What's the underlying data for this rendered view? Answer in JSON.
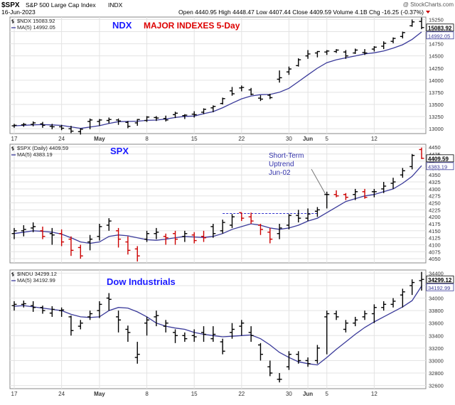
{
  "header": {
    "symbol_title": "$SPX",
    "name": "S&P 500 Large Cap Index",
    "exchange": "INDX",
    "watermark": "@ StockCharts.com",
    "date": "16-Jun-2023",
    "quote": "Open 4440.95  High 4448.47  Low 4407.44  Close 4409.59  Volume 4.1B  Chg -16.25 (-0.37%)"
  },
  "colors": {
    "bar_up": "#000000",
    "bar_down": "#cc0000",
    "moving_average": "#3a3a9a",
    "panel_title": "#1a1aff",
    "overlay_title": "#dd0000",
    "callout": "#3333aa",
    "grid": "#e3e3e3",
    "price_tag_bg": "#ffffff"
  },
  "x_axis": {
    "tick_labels": [
      "17",
      "24",
      "May",
      "8",
      "15",
      "22",
      "30",
      "Jun",
      "5",
      "12"
    ],
    "tick_index": [
      0,
      5,
      9,
      14,
      19,
      24,
      29,
      31,
      33,
      38
    ]
  },
  "chart_data": [
    {
      "type": "ohlc",
      "panel_title": "NDX",
      "overlay_title": "MAJOR INDEXES 5-Day",
      "legend": [
        {
          "label": "$NDX 15083.92",
          "symbol": "bar"
        },
        {
          "label": "MA(5) 14992.05",
          "symbol": "line"
        }
      ],
      "ylim": [
        12900,
        15300
      ],
      "y_ticks": [
        13000,
        13250,
        13500,
        13750,
        14000,
        14250,
        14500,
        14750,
        15000,
        15250
      ],
      "last_price_label": "15083.92",
      "last_ma_label": "14992.05",
      "series": {
        "name": "$NDX",
        "ohlc": [
          [
            13060,
            13100,
            13020,
            13070
          ],
          [
            13080,
            13120,
            13040,
            13090
          ],
          [
            13090,
            13150,
            13050,
            13120
          ],
          [
            13100,
            13140,
            13020,
            13070
          ],
          [
            13050,
            13100,
            12990,
            13040
          ],
          [
            13040,
            13080,
            12970,
            13010
          ],
          [
            13000,
            13060,
            12910,
            12950
          ],
          [
            12940,
            13010,
            12880,
            12990
          ],
          [
            13150,
            13210,
            12990,
            13180
          ],
          [
            13150,
            13200,
            13060,
            13180
          ],
          [
            13170,
            13230,
            13110,
            13190
          ],
          [
            13180,
            13210,
            13080,
            13160
          ],
          [
            13130,
            13160,
            13010,
            13050
          ],
          [
            13120,
            13200,
            13060,
            13190
          ],
          [
            13170,
            13260,
            13140,
            13240
          ],
          [
            13230,
            13260,
            13160,
            13220
          ],
          [
            13210,
            13270,
            13150,
            13180
          ],
          [
            13290,
            13350,
            13220,
            13320
          ],
          [
            13270,
            13300,
            13200,
            13280
          ],
          [
            13300,
            13360,
            13230,
            13290
          ],
          [
            13340,
            13420,
            13300,
            13400
          ],
          [
            13430,
            13480,
            13340,
            13460
          ],
          [
            13520,
            13640,
            13500,
            13620
          ],
          [
            13780,
            13860,
            13680,
            13720
          ],
          [
            13840,
            13890,
            13770,
            13850
          ],
          [
            13800,
            13840,
            13690,
            13710
          ],
          [
            13630,
            13690,
            13570,
            13610
          ],
          [
            13690,
            13720,
            13610,
            13640
          ],
          [
            14020,
            14200,
            13950,
            14050
          ],
          [
            14170,
            14280,
            14110,
            14230
          ],
          [
            14300,
            14450,
            14280,
            14420
          ],
          [
            14500,
            14620,
            14440,
            14540
          ],
          [
            14560,
            14600,
            14470,
            14590
          ],
          [
            14580,
            14620,
            14520,
            14600
          ],
          [
            14590,
            14640,
            14560,
            14620
          ],
          [
            14580,
            14620,
            14440,
            14500
          ],
          [
            14560,
            14650,
            14540,
            14620
          ],
          [
            14570,
            14640,
            14520,
            14560
          ],
          [
            14640,
            14700,
            14590,
            14680
          ],
          [
            14700,
            14800,
            14640,
            14760
          ],
          [
            14800,
            14880,
            14760,
            14860
          ],
          [
            14900,
            15000,
            14860,
            14980
          ],
          [
            15120,
            15250,
            15100,
            15200
          ],
          [
            15210,
            15290,
            15050,
            15083.92
          ]
        ],
        "ma5": [
          13060,
          13070,
          13080,
          13085,
          13079,
          13068,
          13038,
          13008,
          13034,
          13062,
          13110,
          13146,
          13150,
          13154,
          13172,
          13178,
          13200,
          13230,
          13254,
          13262,
          13310,
          13352,
          13432,
          13526,
          13616,
          13674,
          13702,
          13706,
          13752,
          13832,
          13970,
          14110,
          14246,
          14360,
          14420,
          14460,
          14500,
          14540,
          14564,
          14600,
          14660,
          14730,
          14840,
          14992.05
        ]
      }
    },
    {
      "type": "ohlc",
      "panel_title": "SPX",
      "legend": [
        {
          "label": "$SPX (Daily) 4409.59",
          "symbol": "bar"
        },
        {
          "label": "MA(5) 4383.19",
          "symbol": "line"
        }
      ],
      "ylim": [
        4035,
        4460
      ],
      "y_ticks": [
        4050,
        4075,
        4100,
        4125,
        4150,
        4175,
        4200,
        4225,
        4250,
        4275,
        4300,
        4325,
        4350,
        4375,
        4400,
        4425,
        4450
      ],
      "last_price_label": "4409.59",
      "last_ma_label": "4383.19",
      "reference_level": 4212,
      "callout": {
        "lines": [
          "Short-Term",
          "Uptrend",
          "Jun-02"
        ]
      },
      "series": {
        "name": "$SPX",
        "ohlc": [
          [
            4140,
            4160,
            4120,
            4150
          ],
          [
            4150,
            4170,
            4130,
            4155
          ],
          [
            4160,
            4180,
            4145,
            4165
          ],
          [
            4150,
            4165,
            4120,
            4130
          ],
          [
            4140,
            4160,
            4100,
            4135
          ],
          [
            4140,
            4155,
            4095,
            4110
          ],
          [
            4120,
            4130,
            4060,
            4080
          ],
          [
            4090,
            4100,
            4050,
            4060
          ],
          [
            4110,
            4135,
            4080,
            4120
          ],
          [
            4130,
            4175,
            4115,
            4165
          ],
          [
            4170,
            4195,
            4150,
            4185
          ],
          [
            4150,
            4160,
            4090,
            4120
          ],
          [
            4110,
            4130,
            4065,
            4080
          ],
          [
            4085,
            4095,
            4040,
            4060
          ],
          [
            4120,
            4150,
            4110,
            4140
          ],
          [
            4140,
            4160,
            4120,
            4145
          ],
          [
            4130,
            4140,
            4100,
            4125
          ],
          [
            4140,
            4150,
            4100,
            4120
          ],
          [
            4130,
            4150,
            4110,
            4140
          ],
          [
            4135,
            4145,
            4105,
            4115
          ],
          [
            4130,
            4150,
            4110,
            4125
          ],
          [
            4165,
            4175,
            4125,
            4140
          ],
          [
            4150,
            4190,
            4140,
            4180
          ],
          [
            4170,
            4210,
            4160,
            4200
          ],
          [
            4215,
            4215,
            4185,
            4195
          ],
          [
            4200,
            4215,
            4175,
            4185
          ],
          [
            4170,
            4175,
            4135,
            4155
          ],
          [
            4145,
            4160,
            4105,
            4120
          ],
          [
            4140,
            4175,
            4120,
            4160
          ],
          [
            4170,
            4210,
            4155,
            4205
          ],
          [
            4205,
            4225,
            4180,
            4195
          ],
          [
            4195,
            4230,
            4185,
            4210
          ],
          [
            4220,
            4235,
            4200,
            4225
          ],
          [
            4280,
            4290,
            4230,
            4280
          ],
          [
            4280,
            4295,
            4270,
            4275
          ],
          [
            4280,
            4285,
            4260,
            4270
          ],
          [
            4280,
            4300,
            4260,
            4290
          ],
          [
            4290,
            4300,
            4265,
            4270
          ],
          [
            4290,
            4300,
            4270,
            4290
          ],
          [
            4300,
            4325,
            4285,
            4310
          ],
          [
            4320,
            4340,
            4300,
            4325
          ],
          [
            4350,
            4375,
            4340,
            4365
          ],
          [
            4380,
            4425,
            4370,
            4420
          ],
          [
            4441,
            4448,
            4407,
            4409.59
          ]
        ],
        "direction": [
          "up",
          "up",
          "up",
          "down",
          "up",
          "down",
          "down",
          "down",
          "up",
          "up",
          "up",
          "down",
          "down",
          "down",
          "up",
          "up",
          "down",
          "down",
          "up",
          "down",
          "down",
          "up",
          "up",
          "up",
          "down",
          "down",
          "down",
          "down",
          "up",
          "up",
          "up",
          "up",
          "up",
          "up",
          "down",
          "down",
          "up",
          "down",
          "up",
          "up",
          "up",
          "up",
          "up",
          "down"
        ],
        "ma5": [
          4140,
          4145,
          4150,
          4148,
          4145,
          4138,
          4125,
          4110,
          4105,
          4110,
          4130,
          4135,
          4132,
          4125,
          4118,
          4116,
          4120,
          4125,
          4130,
          4128,
          4126,
          4130,
          4140,
          4155,
          4165,
          4175,
          4170,
          4160,
          4155,
          4160,
          4170,
          4185,
          4195,
          4215,
          4235,
          4255,
          4265,
          4275,
          4280,
          4290,
          4300,
          4320,
          4345,
          4383.19
        ]
      }
    },
    {
      "type": "ohlc",
      "panel_title": "Dow Industrials",
      "legend": [
        {
          "label": "$INDU 34299.12",
          "symbol": "bar"
        },
        {
          "label": "MA(5) 34192.99",
          "symbol": "line"
        }
      ],
      "ylim": [
        32550,
        34450
      ],
      "y_ticks": [
        32600,
        32800,
        33000,
        33200,
        33400,
        33600,
        33800,
        34000,
        34200,
        34400
      ],
      "last_price_label": "34299.12",
      "last_ma_label": "34192.99",
      "series": {
        "name": "$INDU",
        "ohlc": [
          [
            33880,
            33950,
            33800,
            33900
          ],
          [
            33900,
            33960,
            33850,
            33910
          ],
          [
            33880,
            33950,
            33780,
            33850
          ],
          [
            33850,
            33880,
            33750,
            33800
          ],
          [
            33760,
            33870,
            33700,
            33820
          ],
          [
            33800,
            33850,
            33700,
            33810
          ],
          [
            33700,
            33720,
            33400,
            33480
          ],
          [
            33550,
            33650,
            33500,
            33600
          ],
          [
            33700,
            33800,
            33650,
            33750
          ],
          [
            33800,
            33950,
            33680,
            33900
          ],
          [
            34000,
            34080,
            33800,
            33980
          ],
          [
            33700,
            33800,
            33450,
            33650
          ],
          [
            33500,
            33560,
            33300,
            33450
          ],
          [
            33050,
            33300,
            32950,
            33100
          ],
          [
            33600,
            33700,
            33400,
            33650
          ],
          [
            33700,
            33800,
            33550,
            33720
          ],
          [
            33550,
            33650,
            33450,
            33600
          ],
          [
            33450,
            33500,
            33280,
            33400
          ],
          [
            33400,
            33450,
            33300,
            33350
          ],
          [
            33400,
            33500,
            33300,
            33380
          ],
          [
            33450,
            33550,
            33300,
            33420
          ],
          [
            33350,
            33550,
            33300,
            33420
          ],
          [
            33300,
            33350,
            33100,
            33150
          ],
          [
            33450,
            33600,
            33350,
            33500
          ],
          [
            33550,
            33650,
            33400,
            33600
          ],
          [
            33450,
            33550,
            33300,
            33400
          ],
          [
            33250,
            33280,
            33000,
            33100
          ],
          [
            32900,
            33000,
            32750,
            32800
          ],
          [
            32700,
            32800,
            32650,
            32700
          ],
          [
            32900,
            33150,
            32850,
            33100
          ],
          [
            33100,
            33150,
            32950,
            33000
          ],
          [
            33000,
            33050,
            32900,
            32950
          ],
          [
            33000,
            33250,
            32950,
            33200
          ],
          [
            33700,
            33800,
            33100,
            33750
          ],
          [
            33750,
            33800,
            33650,
            33700
          ],
          [
            33500,
            33650,
            33450,
            33600
          ],
          [
            33600,
            33700,
            33550,
            33650
          ],
          [
            33700,
            33800,
            33650,
            33750
          ],
          [
            33750,
            33900,
            33600,
            33850
          ],
          [
            33850,
            33950,
            33800,
            33900
          ],
          [
            33900,
            34000,
            33850,
            33950
          ],
          [
            34050,
            34150,
            33850,
            34100
          ],
          [
            34200,
            34300,
            34050,
            34250
          ],
          [
            34280,
            34420,
            34120,
            34299.12
          ]
        ],
        "ma5": [
          33870,
          33880,
          33860,
          33840,
          33820,
          33800,
          33740,
          33700,
          33690,
          33700,
          33800,
          33850,
          33840,
          33780,
          33700,
          33600,
          33550,
          33520,
          33500,
          33450,
          33420,
          33400,
          33380,
          33390,
          33400,
          33410,
          33350,
          33250,
          33130,
          33050,
          32980,
          32950,
          32930,
          33050,
          33180,
          33300,
          33420,
          33530,
          33620,
          33700,
          33780,
          33860,
          33960,
          34192.99
        ]
      }
    }
  ]
}
